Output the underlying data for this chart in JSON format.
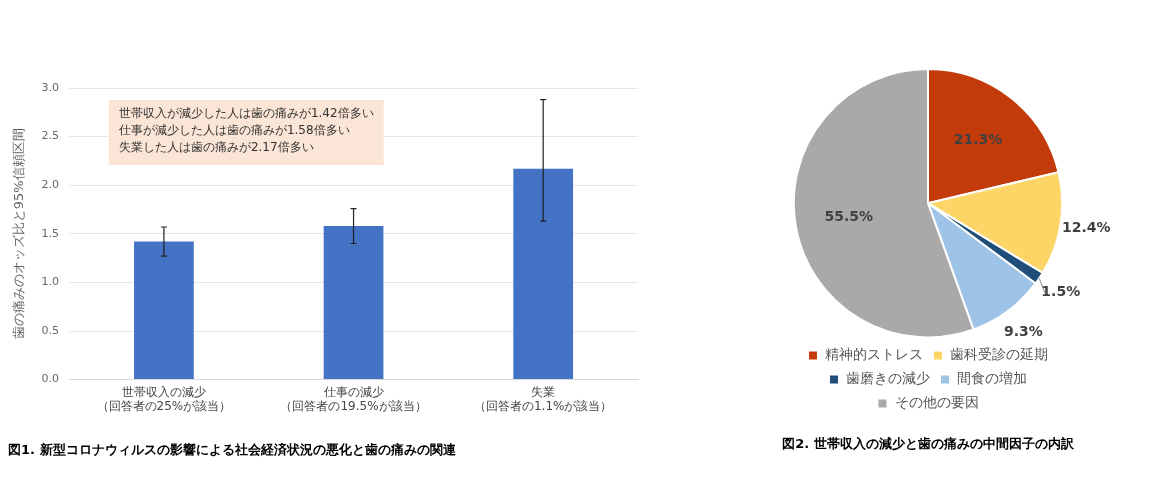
{
  "chart_data": [
    {
      "type": "bar",
      "title": "図1. 新型コロナウィルスの影響による社会経済状況の悪化と歯の痛みの関連",
      "ylabel": "歯の痛みのオッズ比と95%信頼区間",
      "categories": [
        "世帯収入の減少（回答者の25%が該当）",
        "仕事の減少（回答者の19.5%が該当）",
        "失業（回答者の1.1%が該当）"
      ],
      "values": [
        1.42,
        1.58,
        2.17
      ],
      "color": "#4472c4",
      "errors": [
        [
          1.27,
          1.57
        ],
        [
          1.4,
          1.76
        ],
        [
          1.63,
          2.88
        ]
      ],
      "ylim": [
        0,
        3
      ],
      "yticks": [
        {
          "value": 0,
          "label": "0.0"
        },
        {
          "value": 0.5,
          "label": "0.5"
        },
        {
          "value": 1,
          "label": "1.0"
        },
        {
          "value": 1.5,
          "label": "1.5"
        },
        {
          "value": 2,
          "label": "2.0"
        },
        {
          "value": 2.5,
          "label": "2.5"
        },
        {
          "value": 3,
          "label": "3.0"
        }
      ],
      "grid": "y",
      "legend": false,
      "annotations": [
        "世帯収入が減少した人は歯の痛みが1.42倍多い",
        "仕事が減少した人は歯の痛みが1.58倍多い",
        "失業した人は歯の痛みが2.17倍多い"
      ]
    },
    {
      "type": "pie",
      "title": "図2. 世帯収入の減少と歯の痛みの中間因子の内訳",
      "categories": [
        "精神的ストレス",
        "歯科受診の延期",
        "歯磨きの減少",
        "間食の増加",
        "その他の要因"
      ],
      "values": [
        21.3,
        12.4,
        1.5,
        9.3,
        55.5
      ],
      "colors": [
        "#c33b0b",
        "#fcd566",
        "#1f4e79",
        "#9dc3e6",
        "#a9a9a9"
      ],
      "value_labels": [
        "21.3%",
        "12.4%",
        "1.5%",
        "9.3%",
        "55.5%"
      ],
      "legend": "bottom"
    }
  ]
}
